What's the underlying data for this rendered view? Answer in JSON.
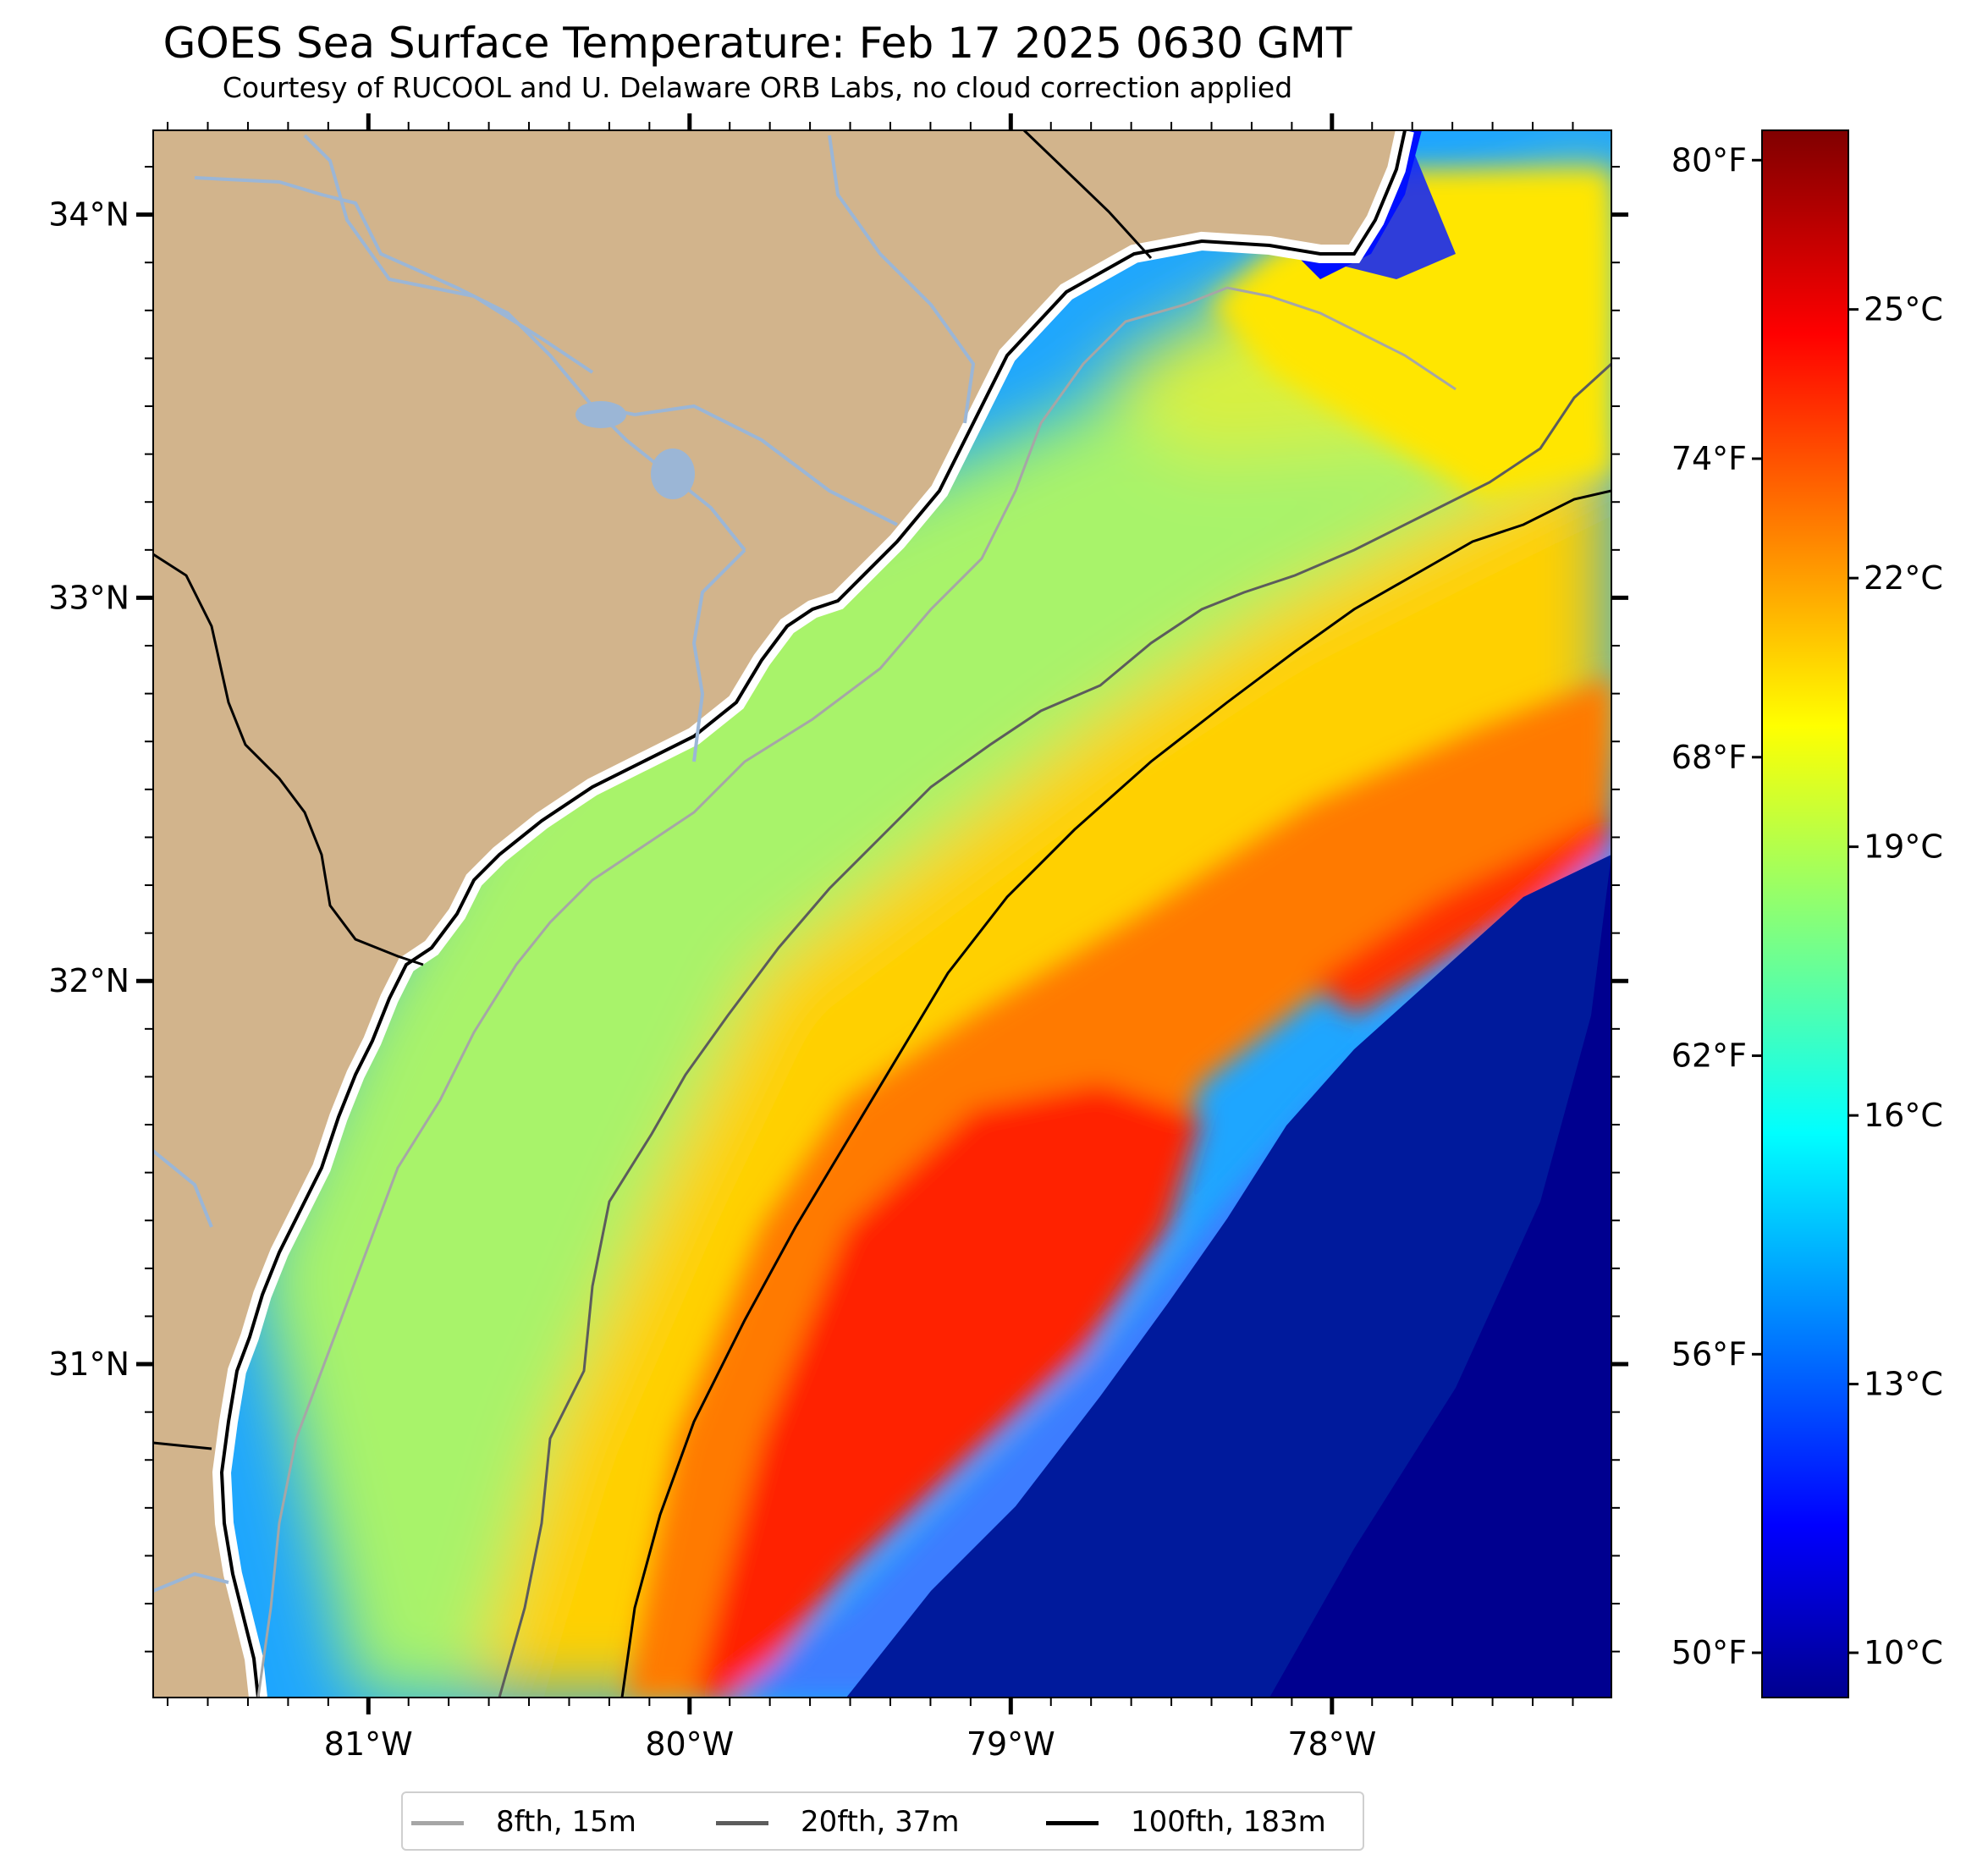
{
  "title": "GOES Sea Surface Temperature: Feb 17 2025 0630 GMT",
  "subtitle": "Courtesy of RUCOOL and U. Delaware ORB Labs, no cloud correction applied",
  "map": {
    "lon_range": [
      -81.67,
      -77.13
    ],
    "lat_range": [
      30.13,
      34.22
    ],
    "lat_ticks": [
      {
        "value": 34,
        "label": "34°N"
      },
      {
        "value": 33,
        "label": "33°N"
      },
      {
        "value": 32,
        "label": "32°N"
      },
      {
        "value": 31,
        "label": "31°N"
      }
    ],
    "lon_ticks": [
      {
        "value": -81,
        "label": "81°W"
      },
      {
        "value": -80,
        "label": "80°W"
      },
      {
        "value": -79,
        "label": "79°W"
      },
      {
        "value": -78,
        "label": "78°W"
      }
    ],
    "colors": {
      "land": "#d2b48c",
      "rivers": "#9bb6d6",
      "coast": "#000000",
      "bathy_8fth": "#a6a6a6",
      "bathy_20fth": "#5c5c5c",
      "bathy_100fth": "#000000"
    }
  },
  "colorbar": {
    "range_c": [
      9.5,
      27.0
    ],
    "left_ticks": [
      {
        "value": 80,
        "label": "80°F"
      },
      {
        "value": 74,
        "label": "74°F"
      },
      {
        "value": 68,
        "label": "68°F"
      },
      {
        "value": 62,
        "label": "62°F"
      },
      {
        "value": 56,
        "label": "56°F"
      },
      {
        "value": 50,
        "label": "50°F"
      }
    ],
    "right_ticks": [
      {
        "value": 25,
        "label": "25°C"
      },
      {
        "value": 22,
        "label": "22°C"
      },
      {
        "value": 19,
        "label": "19°C"
      },
      {
        "value": 16,
        "label": "16°C"
      },
      {
        "value": 13,
        "label": "13°C"
      },
      {
        "value": 10,
        "label": "10°C"
      }
    ],
    "colormap": "jet"
  },
  "legend": {
    "items": [
      {
        "label": "8fth, 15m",
        "color": "#a6a6a6"
      },
      {
        "label": "20fth, 37m",
        "color": "#5c5c5c"
      },
      {
        "label": "100fth, 183m",
        "color": "#000000"
      }
    ]
  }
}
